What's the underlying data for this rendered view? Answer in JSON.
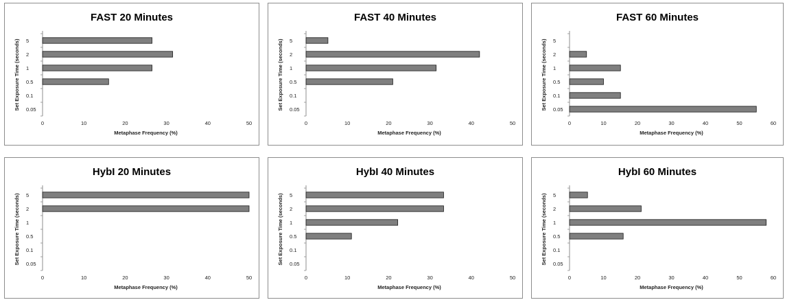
{
  "chart_data": [
    {
      "type": "bar",
      "title": "FAST  20  Minutes",
      "xlabel": "Metaphase Frequency (%)",
      "ylabel": "Set Exposure Time (seconds)",
      "categories": [
        "0.05",
        "0.1",
        "0.5",
        "1",
        "2",
        "5"
      ],
      "values": [
        0,
        0,
        16,
        26.5,
        31.5,
        26.5
      ],
      "xlim": [
        0,
        50
      ],
      "xticks": [
        "0",
        "10",
        "20",
        "30",
        "40",
        "50"
      ],
      "bar_color": "#7f7f7f"
    },
    {
      "type": "bar",
      "title": "FAST  40  Minutes",
      "xlabel": "Metaphase Frequency (%)",
      "ylabel": "Set Exposure Time (seconds)",
      "categories": [
        "0.05",
        "0.1",
        "0.5",
        "1",
        "2",
        "5"
      ],
      "values": [
        0,
        0,
        21,
        31.5,
        42,
        5.3
      ],
      "xlim": [
        0,
        50
      ],
      "xticks": [
        "0",
        "10",
        "20",
        "30",
        "40",
        "50"
      ],
      "bar_color": "#7f7f7f"
    },
    {
      "type": "bar",
      "title": "FAST  60  Minutes",
      "xlabel": "Metaphase Frequency (%)",
      "ylabel": "Set Exposure Time (seconds)",
      "categories": [
        "0.05",
        "0.1",
        "0.5",
        "1",
        "2",
        "5"
      ],
      "values": [
        55,
        15,
        10,
        15,
        5,
        0
      ],
      "xlim": [
        0,
        60
      ],
      "xticks": [
        "0",
        "10",
        "20",
        "30",
        "40",
        "50",
        "60"
      ],
      "bar_color": "#7f7f7f"
    },
    {
      "type": "bar",
      "title": "HybI  20  Minutes",
      "xlabel": "Metaphase Frequency (%)",
      "ylabel": "Set Exposure Time (seconds)",
      "categories": [
        "0.05",
        "0.1",
        "0.5",
        "1",
        "2",
        "5"
      ],
      "values": [
        0,
        0,
        0,
        0,
        50,
        50
      ],
      "xlim": [
        0,
        50
      ],
      "xticks": [
        "0",
        "10",
        "20",
        "30",
        "40",
        "50"
      ],
      "bar_color": "#7f7f7f"
    },
    {
      "type": "bar",
      "title": "HybI  40  Minutes",
      "xlabel": "Metaphase Frequency (%)",
      "ylabel": "Set Exposure Time (seconds)",
      "categories": [
        "0.05",
        "0.1",
        "0.5",
        "1",
        "2",
        "5"
      ],
      "values": [
        0,
        0,
        11,
        22.2,
        33.3,
        33.3
      ],
      "xlim": [
        0,
        50
      ],
      "xticks": [
        "0",
        "10",
        "20",
        "30",
        "40",
        "50"
      ],
      "bar_color": "#7f7f7f"
    },
    {
      "type": "bar",
      "title": "HybI  60  Minutes",
      "xlabel": "Metaphase Frequency (%)",
      "ylabel": "Set Exposure Time (seconds)",
      "categories": [
        "0.05",
        "0.1",
        "0.5",
        "1",
        "2",
        "5"
      ],
      "values": [
        0,
        0,
        15.8,
        57.9,
        21.1,
        5.3
      ],
      "xlim": [
        0,
        60
      ],
      "xticks": [
        "0",
        "10",
        "20",
        "30",
        "40",
        "50",
        "60"
      ],
      "bar_color": "#7f7f7f"
    }
  ]
}
